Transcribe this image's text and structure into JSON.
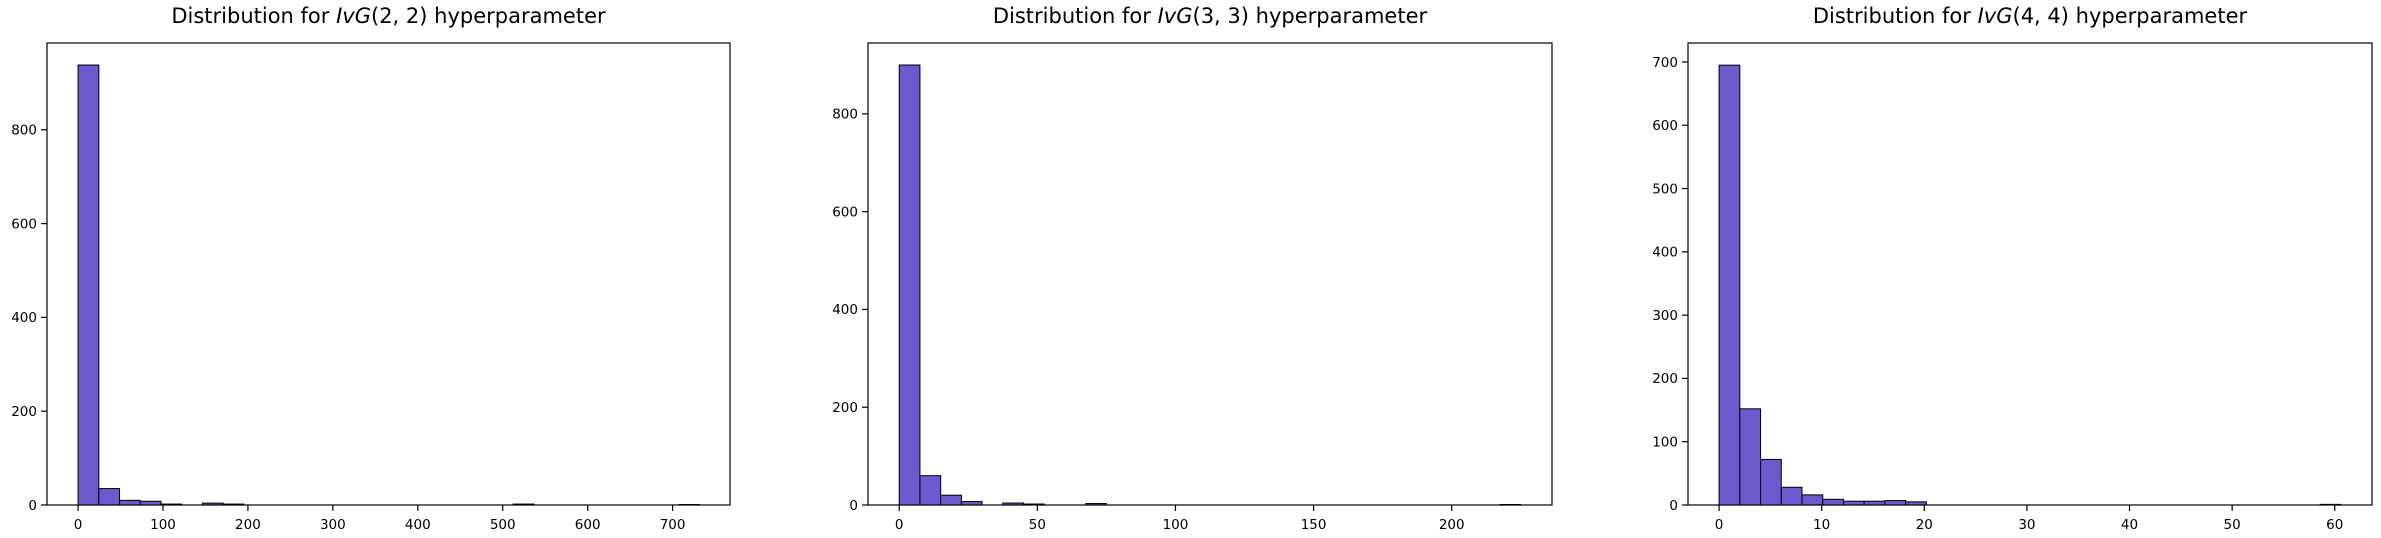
{
  "figure": {
    "background_color": "#ffffff",
    "text_color": "#000000"
  },
  "chart_data": [
    {
      "type": "bar",
      "subtype": "histogram",
      "title": "Distribution for IvG(2, 2) hyperparameter",
      "title_parts": {
        "prefix": "Distribution for ",
        "math_italic": "IvG",
        "math_args": "(2, 2)",
        "suffix": " hyperparameter"
      },
      "xlabel": "",
      "ylabel": "",
      "grid": false,
      "legend": null,
      "bar_color": "#6A5ACD",
      "edge_color": "#000000",
      "bin_start": 0,
      "bin_width": 24.4,
      "counts": [
        938,
        35,
        10,
        8,
        2,
        0,
        4,
        2,
        0,
        0,
        0,
        0,
        0,
        0,
        0,
        0,
        0,
        0,
        0,
        0,
        0,
        2,
        0,
        0,
        0,
        0,
        0,
        0,
        0,
        1
      ],
      "xlim": [
        -36.6,
        767.6
      ],
      "ylim": [
        0,
        985
      ],
      "xticks": [
        0,
        100,
        200,
        300,
        400,
        500,
        600,
        700
      ],
      "yticks": [
        0,
        200,
        400,
        600,
        800
      ]
    },
    {
      "type": "bar",
      "subtype": "histogram",
      "title": "Distribution for IvG(3, 3) hyperparameter",
      "title_parts": {
        "prefix": "Distribution for ",
        "math_italic": "IvG",
        "math_args": "(3, 3)",
        "suffix": " hyperparameter"
      },
      "xlabel": "",
      "ylabel": "",
      "grid": false,
      "legend": null,
      "bar_color": "#6A5ACD",
      "edge_color": "#000000",
      "bin_start": 0,
      "bin_width": 7.5,
      "counts": [
        900,
        60,
        20,
        7,
        0,
        4,
        2,
        0,
        0,
        3,
        0,
        0,
        0,
        0,
        0,
        0,
        0,
        0,
        0,
        0,
        0,
        0,
        0,
        0,
        0,
        0,
        0,
        0,
        0,
        1
      ],
      "xlim": [
        -11.3,
        236.3
      ],
      "ylim": [
        0,
        945
      ],
      "xticks": [
        0,
        50,
        100,
        150,
        200
      ],
      "yticks": [
        0,
        200,
        400,
        600,
        800
      ]
    },
    {
      "type": "bar",
      "subtype": "histogram",
      "title": "Distribution for IvG(4, 4) hyperparameter",
      "title_parts": {
        "prefix": "Distribution for ",
        "math_italic": "IvG",
        "math_args": "(4, 4)",
        "suffix": " hyperparameter"
      },
      "xlabel": "",
      "ylabel": "",
      "grid": false,
      "legend": null,
      "bar_color": "#6A5ACD",
      "edge_color": "#000000",
      "bin_start": 0,
      "bin_width": 2.02,
      "counts": [
        695,
        152,
        72,
        28,
        16,
        9,
        6,
        6,
        7,
        5,
        0,
        0,
        0,
        0,
        0,
        0,
        0,
        0,
        0,
        0,
        0,
        0,
        0,
        0,
        0,
        0,
        0,
        0,
        0,
        1
      ],
      "xlim": [
        -3.03,
        63.63
      ],
      "ylim": [
        0,
        730
      ],
      "xticks": [
        0,
        10,
        20,
        30,
        40,
        50,
        60
      ],
      "yticks": [
        0,
        100,
        200,
        300,
        400,
        500,
        600,
        700
      ]
    }
  ]
}
